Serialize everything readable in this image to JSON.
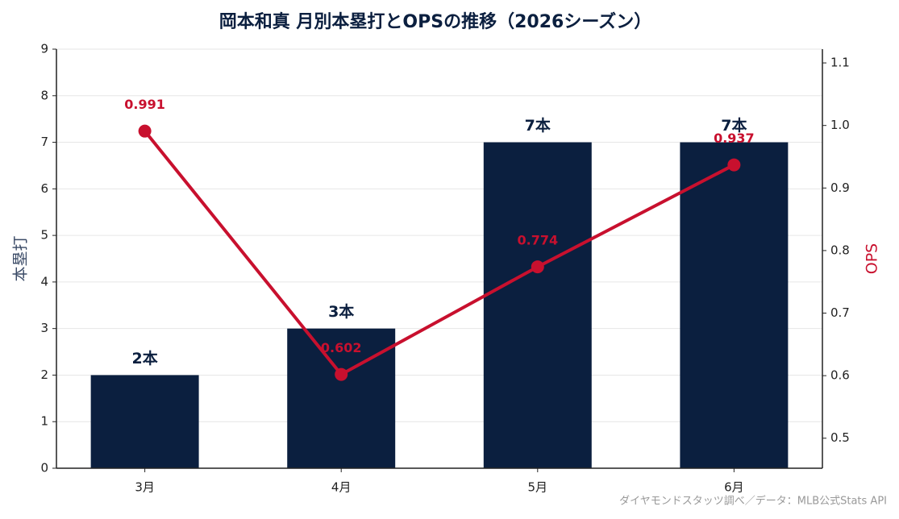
{
  "chart_data": {
    "type": "bar",
    "title": "岡本和真 月別本塁打とOPSの推移（2026シーズン）",
    "categories": [
      "3月",
      "4月",
      "5月",
      "6月"
    ],
    "series": [
      {
        "name": "本塁打",
        "type": "bar",
        "color": "#0b1f3f",
        "values": [
          2,
          3,
          7,
          7
        ],
        "value_labels": [
          "2本",
          "3本",
          "7本",
          "7本"
        ]
      },
      {
        "name": "OPS",
        "type": "line",
        "axis": "y2",
        "color": "#c8102e",
        "values": [
          0.991,
          0.602,
          0.774,
          0.937
        ]
      }
    ],
    "ylabel": "本塁打",
    "y2label": "OPS",
    "ylim": [
      0,
      9
    ],
    "yticks": [
      0,
      1,
      2,
      3,
      4,
      5,
      6,
      7,
      8,
      9
    ],
    "y2lim": [
      0.452,
      1.122
    ],
    "y2ticks": [
      0.5,
      0.6,
      0.7,
      0.8,
      0.9,
      {
        "value": 1,
        "label": "1.0"
      },
      1.1
    ],
    "grid": true,
    "source": "ダイヤモンドスタッツ調べ／データ：MLB公式Stats API"
  }
}
